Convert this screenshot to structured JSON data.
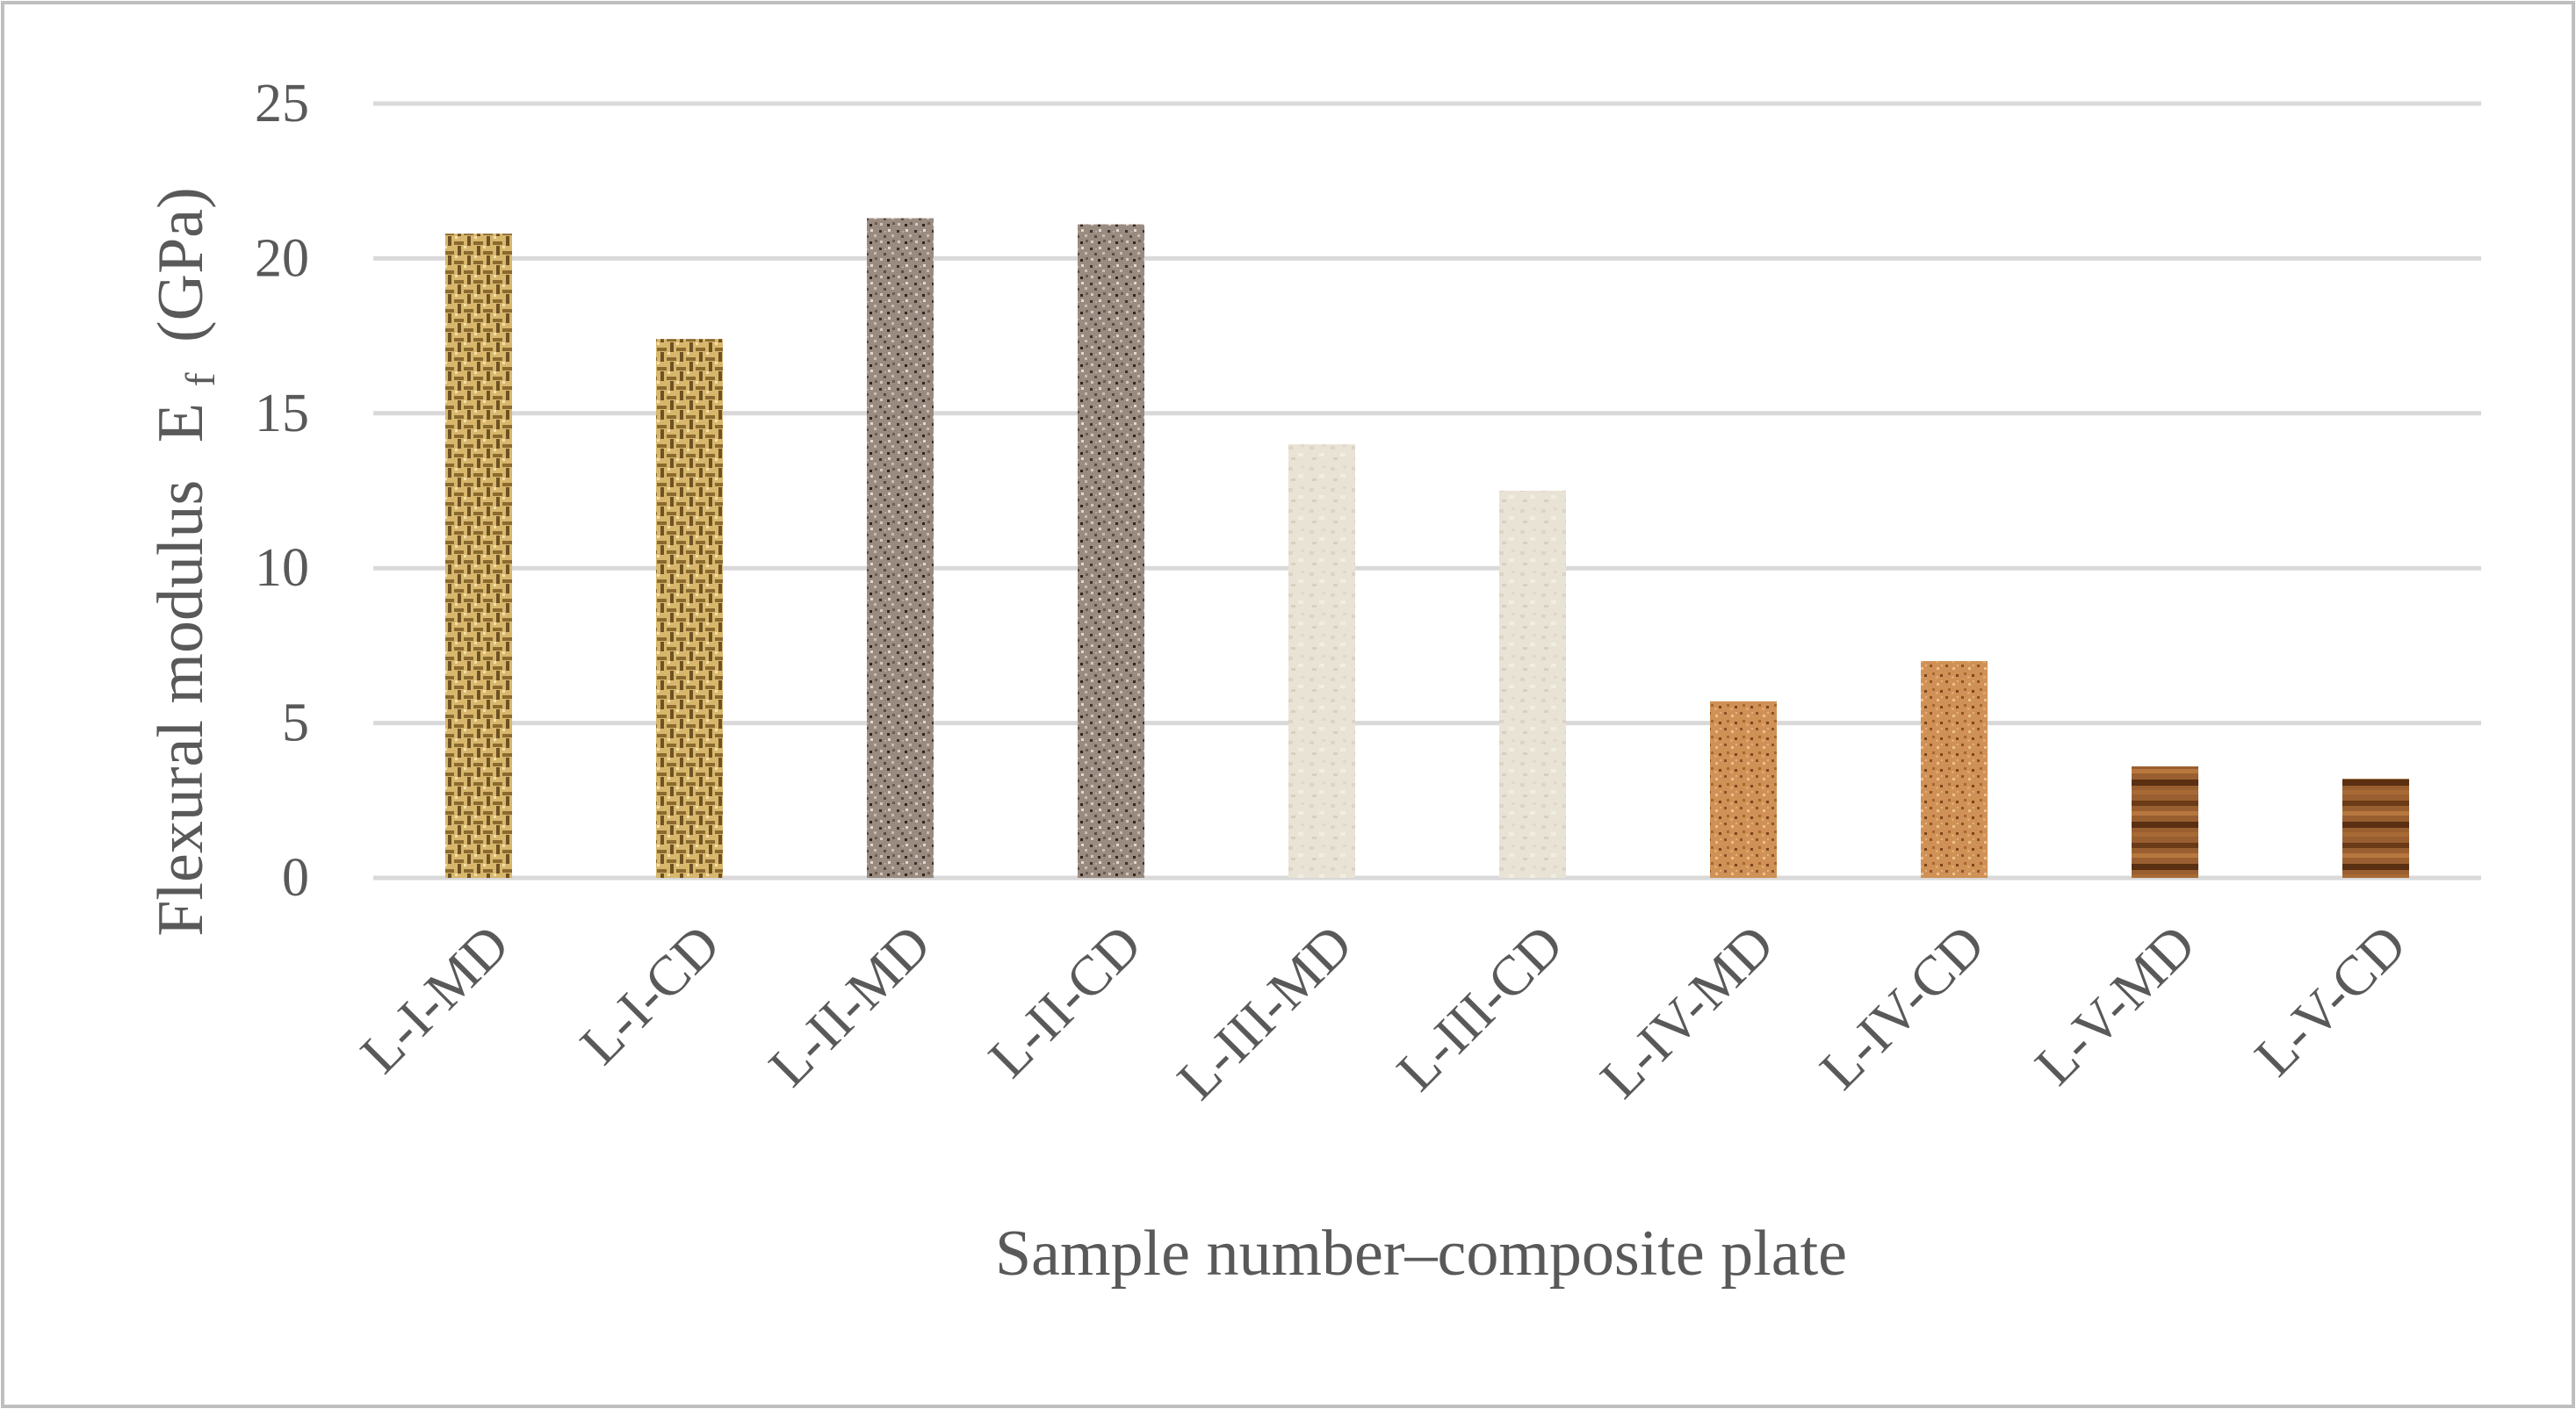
{
  "chart_data": {
    "type": "bar",
    "xlabel": "Sample number–composite plate",
    "ylabel": "Flexural modulus",
    "ylabel_symbol": "E",
    "ylabel_subscript": "f",
    "ylabel_unit": "(GPa)",
    "ylim": [
      0,
      25
    ],
    "yticks": [
      0,
      5,
      10,
      15,
      20,
      25
    ],
    "grid": true,
    "legend": "none",
    "categories": [
      "L-I-MD",
      "L-I-CD",
      "L-II-MD",
      "L-II-CD",
      "L-III-MD",
      "L-III-CD",
      "L-IV-MD",
      "L-IV-CD",
      "L-V-MD",
      "L-V-CD"
    ],
    "series": [
      {
        "values": [
          20.8,
          17.4,
          21.3,
          21.1,
          14.0,
          12.5,
          5.7,
          7.0,
          3.6,
          3.2
        ]
      }
    ],
    "bar_patterns": [
      "woven-gold",
      "woven-gold",
      "speckle-taupe",
      "speckle-taupe",
      "parchment",
      "parchment",
      "cork",
      "cork",
      "wood",
      "wood"
    ],
    "colors": {
      "grid": "#d9d9d9",
      "text": "#595959",
      "frame": "#bfbfbf",
      "woven_gold": "#c9a55c",
      "speckle_taupe": "#8c7d72",
      "parchment": "#e6dfd2",
      "cork": "#c98a4e",
      "wood": "#8a5328"
    }
  }
}
